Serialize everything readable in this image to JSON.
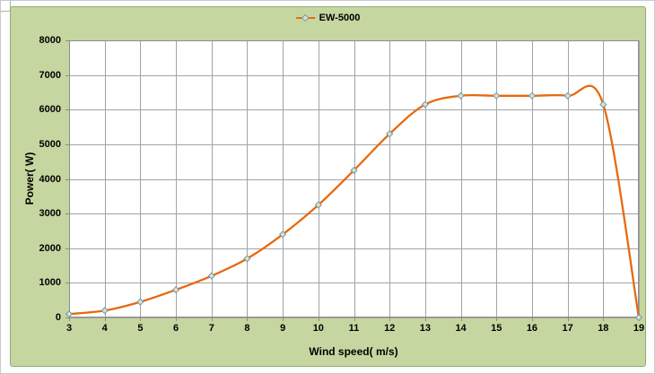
{
  "chart_data": {
    "type": "line",
    "title": "",
    "legend_position": "top-center",
    "xlabel": "Wind speed( m/s)",
    "ylabel": "Power( W)",
    "xlim": [
      3,
      19
    ],
    "ylim": [
      0,
      8000
    ],
    "xticks": [
      3,
      4,
      5,
      6,
      7,
      8,
      9,
      10,
      11,
      12,
      13,
      14,
      15,
      16,
      17,
      18,
      19
    ],
    "yticks": [
      0,
      1000,
      2000,
      3000,
      4000,
      5000,
      6000,
      7000,
      8000
    ],
    "grid": "major-both",
    "x": [
      3,
      4,
      5,
      6,
      7,
      8,
      9,
      10,
      11,
      12,
      13,
      14,
      15,
      16,
      17,
      18,
      19
    ],
    "series": [
      {
        "name": "EW-5000",
        "marker": "diamond",
        "smooth": true,
        "values": [
          100,
          200,
          450,
          800,
          1200,
          1700,
          2400,
          3250,
          4250,
          5300,
          6150,
          6400,
          6400,
          6400,
          6400,
          6150,
          0
        ]
      }
    ],
    "colors": {
      "chart_bg": "#c6d6a0",
      "chart_border": "#95a878",
      "plot_bg": "#ffffff",
      "gridline": "#a3a3a3",
      "plot_border": "#8c8c8c",
      "tick": "#8c8c8c",
      "line": "#e7690e",
      "marker_fill": "#dbe5c0",
      "marker_stroke": "#7295b5",
      "text": "#000000"
    }
  }
}
